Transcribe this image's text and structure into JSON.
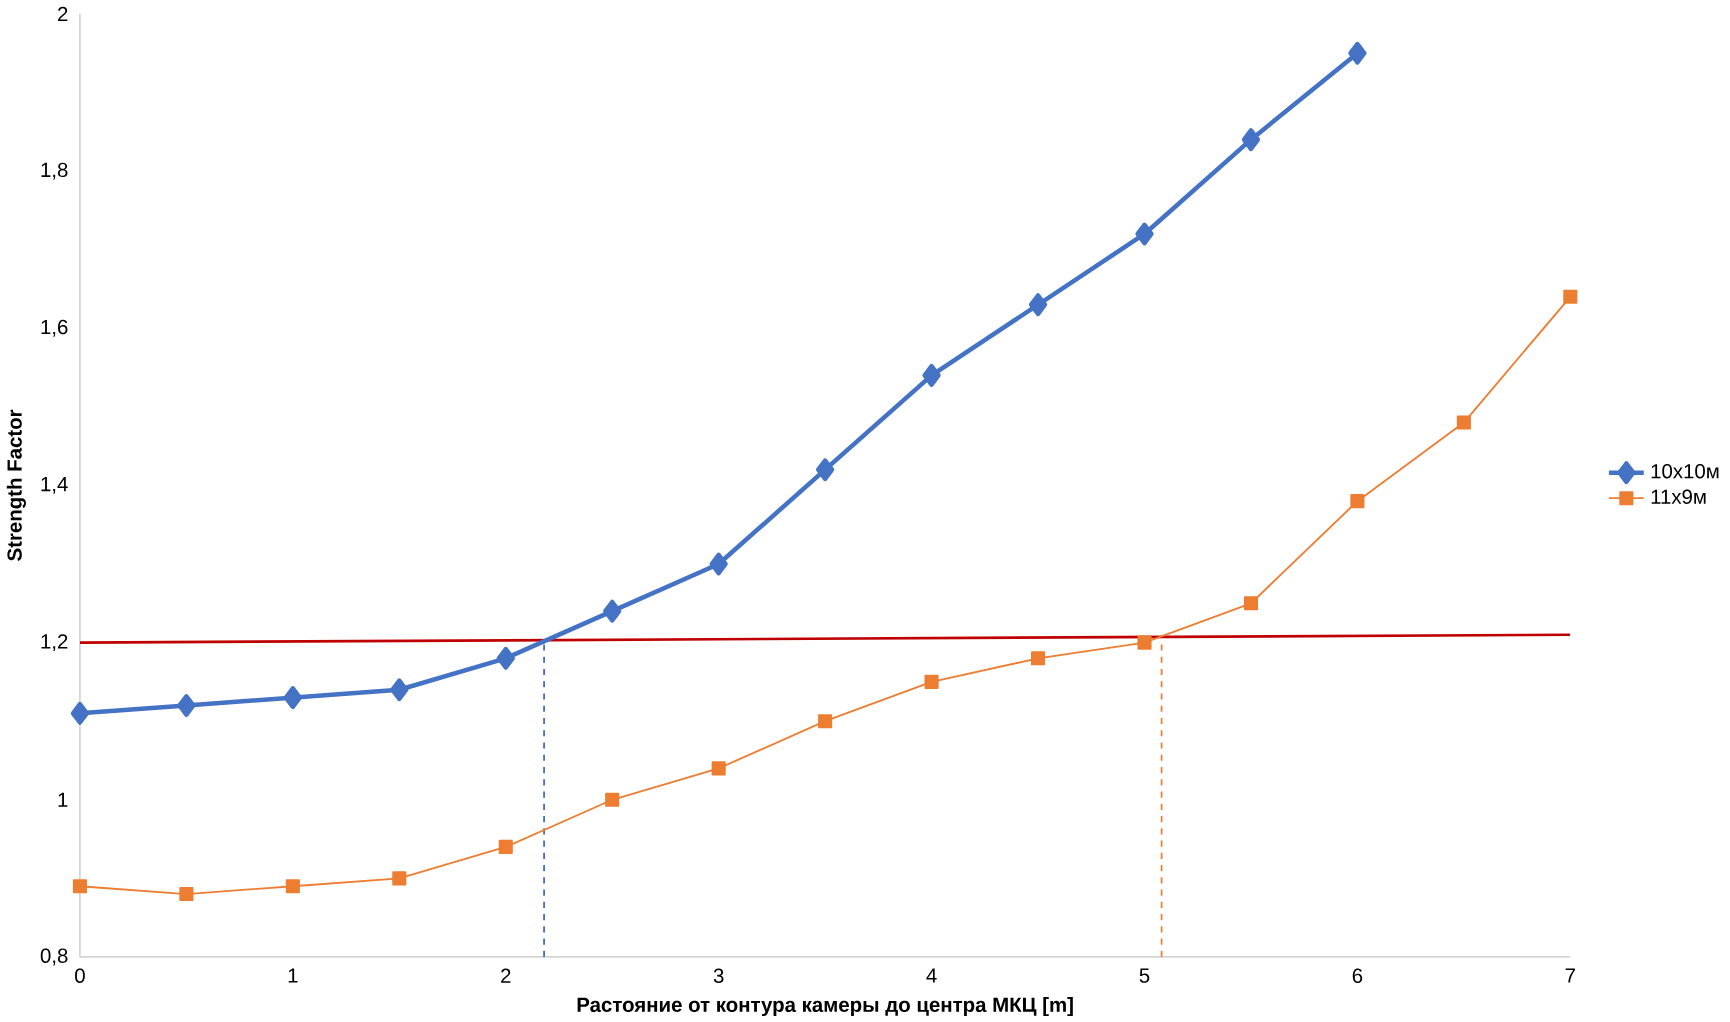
{
  "chart_data": {
    "type": "line",
    "xlabel": "Растояние от контура камеры до центра МКЦ [m]",
    "ylabel": "Strength Factor",
    "xlim": [
      0,
      7
    ],
    "ylim": [
      0.8,
      2
    ],
    "xticks": [
      0,
      1,
      2,
      3,
      4,
      5,
      6,
      7
    ],
    "yticks": [
      {
        "value": 0.8,
        "label": "0,8"
      },
      1,
      {
        "value": 1.2,
        "label": "1,2"
      },
      {
        "value": 1.4,
        "label": "1,4"
      },
      {
        "value": 1.6,
        "label": "1,6"
      },
      {
        "value": 1.8,
        "label": "1,8"
      },
      2
    ],
    "grid": false,
    "legend": "right",
    "series": [
      {
        "name": "10x10м",
        "color": "#4472c4",
        "marker": "diamond",
        "x": [
          0,
          0.5,
          1,
          1.5,
          2,
          2.5,
          3,
          3.5,
          4,
          4.5,
          5,
          5.5,
          6
        ],
        "values": [
          1.11,
          1.12,
          1.13,
          1.14,
          1.18,
          1.24,
          1.3,
          1.42,
          1.54,
          1.63,
          1.72,
          1.84,
          1.95
        ]
      },
      {
        "name": "11x9м",
        "color": "#ed7d31",
        "marker": "square",
        "x": [
          0,
          0.5,
          1,
          1.5,
          2,
          2.5,
          3,
          3.5,
          4,
          4.5,
          5,
          5.5,
          6,
          6.5,
          7
        ],
        "values": [
          0.89,
          0.88,
          0.89,
          0.9,
          0.94,
          1.0,
          1.04,
          1.1,
          1.15,
          1.18,
          1.2,
          1.25,
          1.38,
          1.48,
          1.64
        ]
      },
      {
        "color": "#c00000",
        "marker": "none",
        "x": [
          0,
          7
        ],
        "values": [
          1.2,
          1.21
        ]
      },
      {
        "color": "#4472c4",
        "marker": "none",
        "line_style": "dashed",
        "x": [
          2.18,
          2.18
        ],
        "values": [
          0.8,
          1.2
        ]
      },
      {
        "color": "#ed7d31",
        "marker": "none",
        "line_style": "dashed",
        "x": [
          5.08,
          5.08
        ],
        "values": [
          0.8,
          1.2
        ]
      }
    ]
  }
}
